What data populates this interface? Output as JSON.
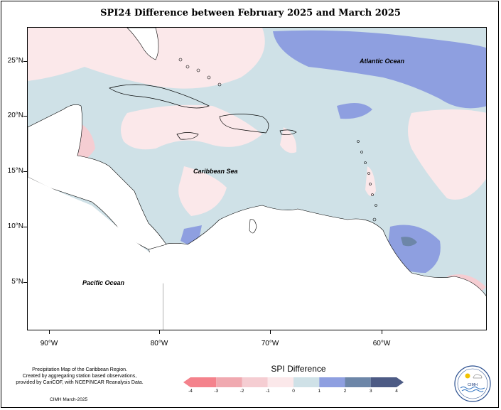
{
  "title": "SPI24 Difference between February 2025 and March 2025",
  "ocean_labels": {
    "atlantic": "Atlantic Ocean",
    "caribbean": "Caribbean Sea",
    "pacific": "Pacific Ocean"
  },
  "axes": {
    "latitude_ticks": [
      "25°N",
      "20°N",
      "15°N",
      "10°N",
      "5°N"
    ],
    "longitude_ticks": [
      "90°W",
      "80°W",
      "70°W",
      "60°W"
    ]
  },
  "legend": {
    "title": "SPI Difference",
    "ticks": [
      "-4",
      "-3",
      "-2",
      "-1",
      "0",
      "1",
      "2",
      "3",
      "4"
    ],
    "classes": [
      {
        "range": "-4 to -3",
        "color": "#f4828c"
      },
      {
        "range": "-3 to -2",
        "color": "#f0a9b0"
      },
      {
        "range": "-2 to -1",
        "color": "#f5cdd2"
      },
      {
        "range": "-1 to 0",
        "color": "#fbe8ea"
      },
      {
        "range": "0 to 1",
        "color": "#cfe1e7"
      },
      {
        "range": "1 to 2",
        "color": "#8e9fe0"
      },
      {
        "range": "2 to 3",
        "color": "#6d86a8"
      },
      {
        "range": "3 to 4",
        "color": "#4d5b85"
      }
    ]
  },
  "credit": {
    "line1": "Precipitation Map of the Caribbean Region.",
    "line2": "Created by aggregating station based observations,",
    "line3": "provided by CariCOF, with NCEP/NCAR Reanalysis Data.",
    "date": "CIMH March-2025"
  },
  "logo": {
    "text": "CIMH",
    "icon": "cimh-logo-icon"
  }
}
